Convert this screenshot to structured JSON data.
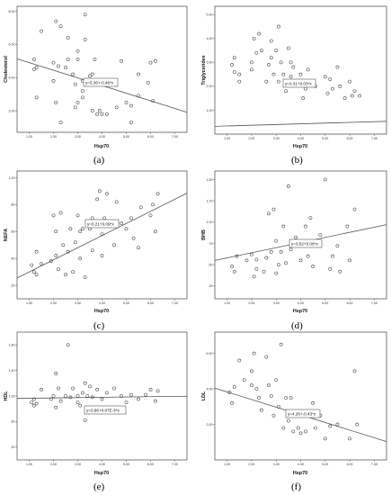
{
  "figure": {
    "panels": [
      {
        "id": "a",
        "label": "(a)"
      },
      {
        "id": "b",
        "label": "(b)"
      },
      {
        "id": "c",
        "label": "(c)"
      },
      {
        "id": "d",
        "label": "(d)"
      },
      {
        "id": "e",
        "label": "(e)"
      },
      {
        "id": "f",
        "label": "(f)"
      }
    ]
  },
  "chart_data": [
    {
      "type": "scatter",
      "xlabel": "Hsp70",
      "ylabel": "Cholesterol",
      "xlim": [
        0.5,
        7.5
      ],
      "ylim": [
        0.7,
        8.3
      ],
      "x_ticks": [
        "1.00",
        "2.00",
        "3.00",
        "4.00",
        "5.00",
        "6.00",
        "7.00"
      ],
      "y_ticks": [
        {
          "value": 2.0,
          "label": "2.00"
        },
        {
          "value": 4.0,
          "label": "4.00"
        },
        {
          "value": 6.0,
          "label": "6.00"
        },
        {
          "value": 8.0,
          "label": "8.00"
        }
      ],
      "fit": {
        "intercept": 5.36,
        "slope": -0.46,
        "label": "y=5.36+-0.46*x"
      },
      "grid": false,
      "points": [
        [
          1.2,
          4.5
        ],
        [
          1.2,
          5.1
        ],
        [
          1.3,
          4.6
        ],
        [
          1.3,
          2.8
        ],
        [
          1.5,
          6.8
        ],
        [
          2.0,
          4.9
        ],
        [
          2.0,
          3.8
        ],
        [
          2.1,
          2.5
        ],
        [
          2.1,
          7.4
        ],
        [
          2.2,
          4.7
        ],
        [
          2.3,
          7.1
        ],
        [
          2.3,
          1.3
        ],
        [
          2.5,
          4.6
        ],
        [
          2.6,
          6.4
        ],
        [
          2.6,
          5.1
        ],
        [
          2.8,
          4.2
        ],
        [
          2.9,
          3.6
        ],
        [
          2.9,
          2.2
        ],
        [
          3.0,
          5.6
        ],
        [
          3.0,
          5.1
        ],
        [
          3.0,
          2.5
        ],
        [
          3.2,
          3.8
        ],
        [
          3.2,
          2.8
        ],
        [
          3.2,
          3.2
        ],
        [
          3.3,
          6.3
        ],
        [
          3.3,
          7.8
        ],
        [
          3.5,
          4.1
        ],
        [
          3.6,
          4.2
        ],
        [
          3.6,
          2.0
        ],
        [
          3.7,
          5.1
        ],
        [
          3.8,
          1.8
        ],
        [
          3.9,
          2.0
        ],
        [
          4.0,
          1.8
        ],
        [
          4.2,
          1.8
        ],
        [
          4.6,
          2.2
        ],
        [
          4.8,
          5.0
        ],
        [
          5.0,
          2.5
        ],
        [
          5.2,
          1.3
        ],
        [
          5.2,
          2.3
        ],
        [
          5.5,
          4.2
        ],
        [
          5.5,
          2.9
        ],
        [
          5.9,
          3.7
        ],
        [
          6.0,
          4.9
        ],
        [
          6.1,
          2.6
        ],
        [
          6.2,
          5.0
        ]
      ]
    },
    {
      "type": "scatter",
      "xlabel": "Hsp70",
      "ylabel": "Triglycerides",
      "xlim": [
        0.5,
        7.5
      ],
      "ylim": [
        0.0,
        5.35
      ],
      "x_ticks": [
        "1.00",
        "2.00",
        "3.00",
        "4.00",
        "5.00",
        "6.00",
        "7.00"
      ],
      "y_ticks": [
        {
          "value": 1.0,
          "label": "1.00"
        },
        {
          "value": 2.0,
          "label": "2.00"
        },
        {
          "value": 3.0,
          "label": "3.00"
        },
        {
          "value": 4.0,
          "label": "4.00"
        },
        {
          "value": 5.0,
          "label": "5.00"
        }
      ],
      "fit": {
        "intercept": 0.31,
        "slope": 0.03,
        "label": "y=0.31+0.03*x"
      },
      "grid": false,
      "points": [
        [
          1.2,
          2.9
        ],
        [
          1.3,
          2.6
        ],
        [
          1.3,
          3.2
        ],
        [
          1.5,
          2.2
        ],
        [
          1.5,
          2.5
        ],
        [
          2.0,
          3.0
        ],
        [
          2.0,
          2.7
        ],
        [
          2.1,
          4.0
        ],
        [
          2.2,
          3.4
        ],
        [
          2.3,
          4.2
        ],
        [
          2.4,
          3.5
        ],
        [
          2.6,
          2.2
        ],
        [
          2.7,
          2.9
        ],
        [
          2.8,
          3.2
        ],
        [
          2.8,
          3.9
        ],
        [
          2.9,
          2.5
        ],
        [
          3.0,
          3.5
        ],
        [
          3.1,
          4.5
        ],
        [
          3.1,
          2.2
        ],
        [
          3.2,
          3.0
        ],
        [
          3.3,
          2.5
        ],
        [
          3.4,
          1.8
        ],
        [
          3.5,
          3.6
        ],
        [
          3.6,
          2.4
        ],
        [
          3.6,
          3.0
        ],
        [
          3.7,
          2.8
        ],
        [
          3.8,
          2.2
        ],
        [
          4.0,
          2.5
        ],
        [
          4.1,
          1.5
        ],
        [
          4.2,
          1.9
        ],
        [
          4.3,
          2.7
        ],
        [
          4.5,
          2.2
        ],
        [
          4.6,
          2.0
        ],
        [
          5.0,
          2.4
        ],
        [
          5.1,
          1.7
        ],
        [
          5.2,
          2.3
        ],
        [
          5.3,
          1.9
        ],
        [
          5.5,
          2.8
        ],
        [
          5.6,
          2.0
        ],
        [
          5.8,
          1.5
        ],
        [
          6.0,
          2.2
        ],
        [
          6.1,
          1.6
        ],
        [
          6.2,
          1.8
        ],
        [
          6.4,
          1.6
        ]
      ]
    },
    {
      "type": "scatter",
      "xlabel": "Hsp70",
      "ylabel": "NEFA",
      "xlim": [
        0.5,
        7.5
      ],
      "ylim": [
        0.1,
        1.05
      ],
      "x_ticks": [
        "1.00",
        "2.00",
        "3.00",
        "4.00",
        "5.00",
        "6.00",
        "7.00"
      ],
      "y_ticks": [
        {
          "value": 0.2,
          "label": ".20"
        },
        {
          "value": 0.4,
          "label": ".40"
        },
        {
          "value": 0.6,
          "label": ".60"
        },
        {
          "value": 0.8,
          "label": ".80"
        },
        {
          "value": 1.0,
          "label": "1.00"
        }
      ],
      "fit": {
        "intercept": 0.21,
        "slope": 0.09,
        "label": "y=0.21+0.09*x"
      },
      "grid": false,
      "points": [
        [
          1.1,
          0.35
        ],
        [
          1.2,
          0.3
        ],
        [
          1.3,
          0.45
        ],
        [
          1.3,
          0.28
        ],
        [
          1.5,
          0.36
        ],
        [
          1.9,
          0.38
        ],
        [
          2.0,
          0.72
        ],
        [
          2.1,
          0.6
        ],
        [
          2.1,
          0.42
        ],
        [
          2.2,
          0.32
        ],
        [
          2.3,
          0.74
        ],
        [
          2.4,
          0.5
        ],
        [
          2.5,
          0.28
        ],
        [
          2.6,
          0.45
        ],
        [
          2.7,
          0.62
        ],
        [
          2.8,
          0.3
        ],
        [
          2.9,
          0.52
        ],
        [
          3.0,
          0.72
        ],
        [
          3.1,
          0.6
        ],
        [
          3.1,
          0.4
        ],
        [
          3.2,
          0.62
        ],
        [
          3.3,
          0.26
        ],
        [
          3.5,
          0.62
        ],
        [
          3.6,
          0.7
        ],
        [
          3.6,
          0.46
        ],
        [
          3.8,
          0.84
        ],
        [
          3.9,
          0.9
        ],
        [
          4.0,
          0.58
        ],
        [
          4.0,
          0.42
        ],
        [
          4.1,
          0.7
        ],
        [
          4.2,
          0.88
        ],
        [
          4.5,
          0.5
        ],
        [
          4.6,
          0.82
        ],
        [
          4.8,
          0.66
        ],
        [
          5.0,
          0.62
        ],
        [
          5.2,
          0.7
        ],
        [
          5.3,
          0.55
        ],
        [
          5.5,
          0.48
        ],
        [
          5.6,
          0.78
        ],
        [
          6.0,
          0.72
        ],
        [
          6.1,
          0.8
        ],
        [
          6.2,
          0.6
        ],
        [
          6.3,
          0.88
        ]
      ]
    },
    {
      "type": "scatter",
      "xlabel": "Hsp70",
      "ylabel": "BHB",
      "xlim": [
        0.5,
        7.5
      ],
      "ylim": [
        0.1,
        1.6
      ],
      "x_ticks": [
        "1.00",
        "2.00",
        "3.00",
        "4.00",
        "5.00",
        "6.00",
        "7.00"
      ],
      "y_ticks": [
        {
          "value": 0.25,
          "label": ".25"
        },
        {
          "value": 0.5,
          "label": ".50"
        },
        {
          "value": 0.75,
          "label": ".75"
        },
        {
          "value": 1.0,
          "label": "1.00"
        },
        {
          "value": 1.25,
          "label": "1.25"
        },
        {
          "value": 1.5,
          "label": "1.50"
        }
      ],
      "fit": {
        "intercept": 0.52,
        "slope": 0.06,
        "label": "y=0.52+0.06*x"
      },
      "grid": false,
      "points": [
        [
          1.2,
          0.48
        ],
        [
          1.3,
          0.42
        ],
        [
          1.4,
          0.6
        ],
        [
          1.8,
          0.55
        ],
        [
          2.0,
          0.62
        ],
        [
          2.1,
          0.36
        ],
        [
          2.2,
          0.45
        ],
        [
          2.2,
          0.56
        ],
        [
          2.5,
          0.42
        ],
        [
          2.6,
          0.58
        ],
        [
          2.7,
          1.1
        ],
        [
          2.8,
          0.65
        ],
        [
          2.9,
          1.15
        ],
        [
          3.0,
          0.4
        ],
        [
          3.0,
          0.78
        ],
        [
          3.1,
          0.5
        ],
        [
          3.2,
          0.65
        ],
        [
          3.3,
          0.95
        ],
        [
          3.4,
          0.52
        ],
        [
          3.5,
          1.42
        ],
        [
          3.6,
          0.68
        ],
        [
          3.8,
          0.82
        ],
        [
          4.0,
          0.72
        ],
        [
          4.0,
          0.55
        ],
        [
          4.2,
          0.95
        ],
        [
          4.3,
          0.6
        ],
        [
          4.4,
          1.05
        ],
        [
          4.5,
          0.48
        ],
        [
          4.8,
          0.85
        ],
        [
          5.0,
          1.5
        ],
        [
          5.2,
          0.45
        ],
        [
          5.3,
          0.6
        ],
        [
          5.5,
          0.72
        ],
        [
          5.6,
          0.42
        ],
        [
          5.9,
          0.95
        ],
        [
          6.0,
          0.55
        ],
        [
          6.2,
          1.15
        ]
      ]
    },
    {
      "type": "scatter",
      "xlabel": "Hsp70",
      "ylabel": "HDL",
      "xlim": [
        0.5,
        7.5
      ],
      "ylim": [
        0.0,
        2.0
      ],
      "x_ticks": [
        "1.00",
        "2.00",
        "3.00",
        "4.00",
        "5.00",
        "6.00",
        "7.00"
      ],
      "y_ticks": [
        {
          "value": 0.2,
          "label": ".20"
        },
        {
          "value": 0.6,
          "label": ".60"
        },
        {
          "value": 1.0,
          "label": "1.00"
        },
        {
          "value": 1.4,
          "label": "1.40"
        },
        {
          "value": 1.8,
          "label": "1.80"
        }
      ],
      "fit": {
        "intercept": 0.96,
        "slope": 0.00487,
        "label": "y=0.96+4.87E-3*x"
      },
      "grid": false,
      "points": [
        [
          1.1,
          0.9
        ],
        [
          1.2,
          0.95
        ],
        [
          1.2,
          0.85
        ],
        [
          1.3,
          0.88
        ],
        [
          1.5,
          1.1
        ],
        [
          1.9,
          0.95
        ],
        [
          2.0,
          1.0
        ],
        [
          2.1,
          1.35
        ],
        [
          2.1,
          0.82
        ],
        [
          2.2,
          1.12
        ],
        [
          2.3,
          0.92
        ],
        [
          2.5,
          1.0
        ],
        [
          2.6,
          1.8
        ],
        [
          2.7,
          0.98
        ],
        [
          2.8,
          1.12
        ],
        [
          3.0,
          1.0
        ],
        [
          3.0,
          0.9
        ],
        [
          3.1,
          0.85
        ],
        [
          3.2,
          1.05
        ],
        [
          3.3,
          1.2
        ],
        [
          3.3,
          0.62
        ],
        [
          3.4,
          1.0
        ],
        [
          3.5,
          1.15
        ],
        [
          3.6,
          0.98
        ],
        [
          3.8,
          1.1
        ],
        [
          4.0,
          0.95
        ],
        [
          4.2,
          1.05
        ],
        [
          4.5,
          1.12
        ],
        [
          4.8,
          1.0
        ],
        [
          5.0,
          0.9
        ],
        [
          5.2,
          1.02
        ],
        [
          5.5,
          0.95
        ],
        [
          5.8,
          1.02
        ],
        [
          6.0,
          1.1
        ],
        [
          6.2,
          0.92
        ],
        [
          6.3,
          1.08
        ]
      ]
    },
    {
      "type": "scatter",
      "xlabel": "Hsp70",
      "ylabel": "LDL",
      "xlim": [
        0.5,
        7.5
      ],
      "ylim": [
        0.0,
        7.2
      ],
      "x_ticks": [
        "1.00",
        "2.00",
        "3.00",
        "4.00",
        "5.00",
        "6.00",
        "7.00"
      ],
      "y_ticks": [
        {
          "value": 2.0,
          "label": "2.00"
        },
        {
          "value": 4.0,
          "label": "4.00"
        },
        {
          "value": 6.0,
          "label": "6.00"
        }
      ],
      "fit": {
        "intercept": 4.26,
        "slope": -0.43,
        "label": "y=4.26+-0.43*x"
      },
      "grid": false,
      "points": [
        [
          1.1,
          3.8
        ],
        [
          1.2,
          3.2
        ],
        [
          1.3,
          4.1
        ],
        [
          1.5,
          5.6
        ],
        [
          1.7,
          4.5
        ],
        [
          2.0,
          4.2
        ],
        [
          2.0,
          5.0
        ],
        [
          2.1,
          6.0
        ],
        [
          2.2,
          4.0
        ],
        [
          2.3,
          3.5
        ],
        [
          2.4,
          2.8
        ],
        [
          2.6,
          5.8
        ],
        [
          2.7,
          4.2
        ],
        [
          2.8,
          3.6
        ],
        [
          2.9,
          2.5
        ],
        [
          3.0,
          4.5
        ],
        [
          3.1,
          3.0
        ],
        [
          3.2,
          6.5
        ],
        [
          3.3,
          1.8
        ],
        [
          3.4,
          3.5
        ],
        [
          3.5,
          2.2
        ],
        [
          3.6,
          3.5
        ],
        [
          3.7,
          1.6
        ],
        [
          3.9,
          1.8
        ],
        [
          4.0,
          1.5
        ],
        [
          4.2,
          1.6
        ],
        [
          4.5,
          3.2
        ],
        [
          4.6,
          1.8
        ],
        [
          4.8,
          2.5
        ],
        [
          5.0,
          1.2
        ],
        [
          5.2,
          1.9
        ],
        [
          5.5,
          2.0
        ],
        [
          6.0,
          1.2
        ],
        [
          6.2,
          5.0
        ],
        [
          6.3,
          2.0
        ]
      ]
    }
  ]
}
